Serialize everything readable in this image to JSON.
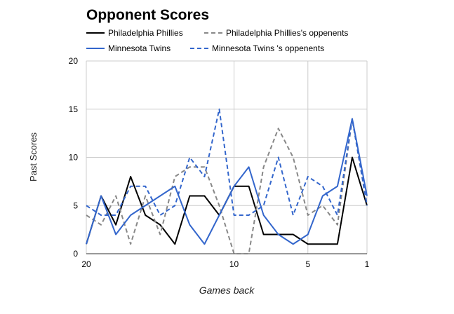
{
  "chart_data": {
    "type": "line",
    "title": "Opponent Scores",
    "xlabel": "Games back",
    "ylabel": "Past Scores",
    "xlim": [
      20,
      1
    ],
    "ylim": [
      0,
      20
    ],
    "x_ticks": [
      "20",
      "10",
      "5",
      "1"
    ],
    "y_ticks": [
      "0",
      "5",
      "10",
      "15",
      "20"
    ],
    "grid": true,
    "legend_position": "top",
    "x": [
      20,
      19,
      18,
      17,
      16,
      15,
      14,
      13,
      12,
      11,
      10,
      9,
      8,
      7,
      6,
      5,
      4,
      3,
      2,
      1
    ],
    "series": [
      {
        "name": "Philadelphia Phillies",
        "color": "#000000",
        "style": "solid",
        "values": [
          1,
          6,
          3,
          8,
          4,
          3,
          1,
          6,
          6,
          4,
          7,
          7,
          2,
          2,
          2,
          1,
          1,
          1,
          10,
          5
        ]
      },
      {
        "name": "Philadelphia Phillies's oppenents",
        "color": "#888888",
        "style": "dashed",
        "values": [
          4,
          3,
          6,
          1,
          6,
          2,
          8,
          9,
          9,
          5,
          0,
          0,
          9,
          13,
          10,
          4,
          5,
          3,
          14,
          5
        ]
      },
      {
        "name": "Minnesota Twins",
        "color": "#3366cc",
        "style": "solid",
        "values": [
          1,
          6,
          2,
          4,
          5,
          6,
          7,
          3,
          1,
          4,
          7,
          9,
          4,
          2,
          1,
          2,
          6,
          7,
          14,
          6
        ]
      },
      {
        "name": "Minnesota Twins 's oppenents",
        "color": "#3366cc",
        "style": "dashed",
        "values": [
          5,
          4,
          4,
          7,
          7,
          4,
          5,
          10,
          8,
          15,
          4,
          4,
          5,
          10,
          4,
          8,
          7,
          4,
          14,
          5
        ]
      }
    ]
  }
}
